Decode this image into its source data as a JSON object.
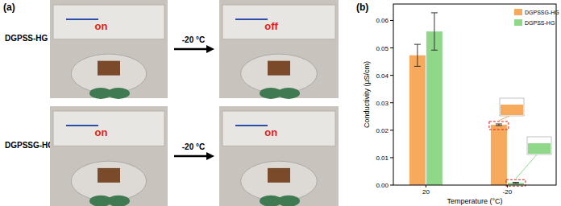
{
  "panel_a": {
    "label": "(a)",
    "rows": [
      {
        "name": "DGPSS-HG",
        "before": "on",
        "condition": "-20 °C",
        "after": "off"
      },
      {
        "name": "DGPSSG-HG",
        "before": "on",
        "condition": "-20 °C",
        "after": "on"
      }
    ]
  },
  "chart_data": {
    "type": "bar",
    "panel_label": "(b)",
    "x_label": "Temperature (°C)",
    "y_label": "Conductivity (μS/cm)",
    "categories": [
      "20",
      "-20"
    ],
    "series": [
      {
        "name": "DGPSSG-HG",
        "color": "#f7a95c",
        "values": [
          0.0473,
          0.022
        ],
        "errors": [
          0.004,
          0.0003
        ]
      },
      {
        "name": "DGPSS-HG",
        "color": "#8fd88a",
        "values": [
          0.056,
          0.0008
        ],
        "errors": [
          0.0068,
          0.0002
        ]
      }
    ],
    "ylim": [
      0,
      0.066
    ],
    "yticks": [
      {
        "value": 0,
        "label": "0.00"
      },
      {
        "value": 0.01,
        "label": "0.01"
      },
      {
        "value": 0.02,
        "label": "0.02"
      },
      {
        "value": 0.03,
        "label": "0.03"
      },
      {
        "value": 0.04,
        "label": "0.04"
      },
      {
        "value": 0.05,
        "label": "0.05"
      },
      {
        "value": 0.06,
        "label": "0.06"
      }
    ],
    "legend": "upper-right",
    "grid": false
  }
}
